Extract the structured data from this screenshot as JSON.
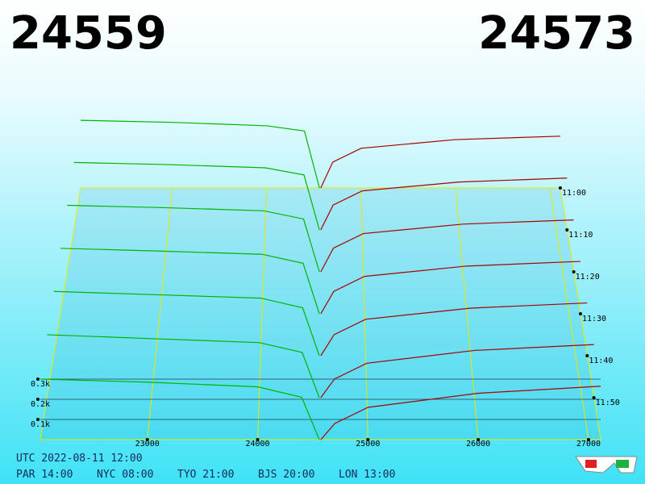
{
  "chart_data": {
    "type": "depth3d",
    "bid": 24559,
    "ask": 24573,
    "bid_color": "#00b400",
    "ask_color": "#a80000",
    "xlim": [
      22030,
      27110
    ],
    "xticks": [
      23000,
      24000,
      25000,
      26000,
      27000
    ],
    "tlim": [
      660,
      720
    ],
    "tticks": [
      {
        "value": 660,
        "label": "11:00"
      },
      {
        "value": 670,
        "label": "11:10"
      },
      {
        "value": 680,
        "label": "11:20"
      },
      {
        "value": 690,
        "label": "11:30"
      },
      {
        "value": 700,
        "label": "11:40"
      },
      {
        "value": 710,
        "label": "11:50"
      }
    ],
    "zticks": [
      {
        "value": 100,
        "label": "0.1k"
      },
      {
        "value": 200,
        "label": "0.2k"
      },
      {
        "value": 300,
        "label": "0.3k"
      }
    ],
    "bid_prices": [
      22030,
      23000,
      24000,
      24400,
      24559
    ],
    "ask_prices": [
      24573,
      24700,
      25000,
      26000,
      27110
    ],
    "snapshots": [
      {
        "time": 660,
        "bids": [
          392,
          380,
          360,
          330,
          0
        ],
        "asks": [
          0,
          150,
          230,
          280,
          300
        ]
      },
      {
        "time": 670,
        "bids": [
          380,
          368,
          350,
          310,
          0
        ],
        "asks": [
          0,
          140,
          220,
          270,
          292
        ]
      },
      {
        "time": 680,
        "bids": [
          365,
          352,
          335,
          290,
          0
        ],
        "asks": [
          0,
          130,
          210,
          262,
          285
        ]
      },
      {
        "time": 690,
        "bids": [
          350,
          335,
          318,
          270,
          0
        ],
        "asks": [
          0,
          120,
          200,
          255,
          280
        ]
      },
      {
        "time": 700,
        "bids": [
          335,
          318,
          300,
          250,
          0
        ],
        "asks": [
          0,
          110,
          190,
          248,
          275
        ]
      },
      {
        "time": 710,
        "bids": [
          320,
          300,
          280,
          230,
          0
        ],
        "asks": [
          0,
          95,
          175,
          240,
          270
        ]
      },
      {
        "time": 720,
        "bids": [
          300,
          285,
          262,
          210,
          0
        ],
        "asks": [
          0,
          80,
          160,
          230,
          265
        ]
      }
    ]
  },
  "footer": {
    "utc": "UTC 2022-08-11 12:00",
    "clocks": [
      "PAR 14:00",
      "NYC 08:00",
      "TYO 21:00",
      "BJS 20:00",
      "LON 13:00"
    ]
  }
}
